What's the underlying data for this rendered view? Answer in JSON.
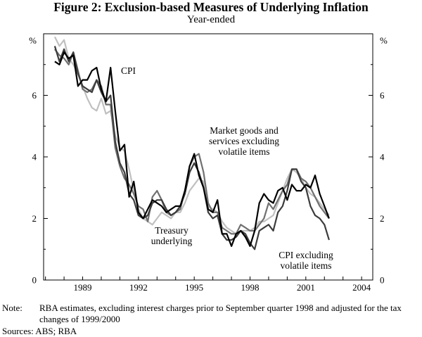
{
  "title": "Figure 2: Exclusion-based Measures of Underlying Inflation",
  "subtitle": "Year-ended",
  "note_label": "Note:",
  "note_text": "RBA estimates, excluding interest charges prior to September quarter 1998 and adjusted for the tax changes of 1999/2000",
  "sources": "Sources: ABS; RBA",
  "chart_data": {
    "type": "line",
    "x_start": 1987.5,
    "x_step": 0.25,
    "xlim": [
      1986.9,
      2004.6
    ],
    "ylim": [
      0,
      8
    ],
    "xticks": [
      1989,
      1992,
      1995,
      1998,
      2001,
      2004
    ],
    "xtick_labels": [
      "1989",
      "1992",
      "1995",
      "1998",
      "2001",
      "2004"
    ],
    "yticks": [
      0,
      2,
      4,
      6
    ],
    "ytick_labels": [
      "0",
      "2",
      "4",
      "6"
    ],
    "y_unit_left": "%",
    "y_unit_right": "%",
    "grid": false,
    "series": [
      {
        "name": "CPI",
        "color": "#000000",
        "values": [
          7.1,
          7.0,
          7.4,
          7.2,
          7.3,
          6.3,
          6.5,
          6.5,
          6.8,
          6.9,
          6.2,
          5.8,
          6.9,
          5.5,
          4.2,
          4.4,
          2.7,
          3.2,
          2.2,
          2.0,
          2.3,
          2.6,
          2.5,
          2.4,
          2.2,
          2.3,
          2.4,
          2.4,
          2.9,
          3.7,
          4.1,
          3.4,
          3.0,
          2.3,
          2.2,
          2.6,
          1.5,
          1.5,
          1.1,
          1.5,
          1.6,
          1.4,
          1.1,
          1.6,
          2.5,
          2.8,
          2.6,
          2.5,
          2.9,
          3.0,
          2.6,
          3.1,
          2.9,
          2.9,
          3.1,
          3.0,
          3.4,
          2.8,
          2.4,
          2.0
        ],
        "label": "CPI"
      },
      {
        "name": "Market goods and services excluding volatile items",
        "color": "#707070",
        "values": [
          7.5,
          7.3,
          7.2,
          7.0,
          7.4,
          6.8,
          6.2,
          6.1,
          6.2,
          6.5,
          6.3,
          5.7,
          5.7,
          4.3,
          3.7,
          3.3,
          3.1,
          2.8,
          2.4,
          2.3,
          1.9,
          2.7,
          2.9,
          2.6,
          2.2,
          2.1,
          2.2,
          2.3,
          2.9,
          3.7,
          4.0,
          4.1,
          3.5,
          2.5,
          2.2,
          2.2,
          1.7,
          1.6,
          1.5,
          1.5,
          1.8,
          1.7,
          1.6,
          1.6,
          1.8,
          2.0,
          2.5,
          2.3,
          2.6,
          2.9,
          3.1,
          3.6,
          3.6,
          3.3,
          3.2,
          3.0,
          2.7,
          2.4,
          2.2,
          2.0
        ],
        "label": "Market goods and services excluding volatile items"
      },
      {
        "name": "CPI excluding volatile items",
        "color": "#3c3c3c",
        "values": [
          7.6,
          7.1,
          7.5,
          7.1,
          7.4,
          6.7,
          6.3,
          6.2,
          6.1,
          6.5,
          6.1,
          5.8,
          6.0,
          4.5,
          3.8,
          3.5,
          2.8,
          2.6,
          2.1,
          2.0,
          2.1,
          2.5,
          2.6,
          2.6,
          2.3,
          2.1,
          2.2,
          2.4,
          2.8,
          3.5,
          3.8,
          3.5,
          3.0,
          2.2,
          2.0,
          2.1,
          1.5,
          1.3,
          1.3,
          1.4,
          1.6,
          1.5,
          1.2,
          1.0,
          1.6,
          1.7,
          1.8,
          1.6,
          2.2,
          2.4,
          2.9,
          3.6,
          3.6,
          3.2,
          3.0,
          2.4,
          2.1,
          2.0,
          1.8,
          1.3
        ],
        "label": "CPI excluding volatile items"
      },
      {
        "name": "Treasury underlying",
        "color": "#c0c0c0",
        "values": [
          7.9,
          7.6,
          7.8,
          7.2,
          7.0,
          6.7,
          6.3,
          5.9,
          5.6,
          5.5,
          5.9,
          5.4,
          5.5,
          4.7,
          4.3,
          4.2,
          3.6,
          2.9,
          2.3,
          2.0,
          1.9,
          1.8,
          2.0,
          2.2,
          2.1,
          2.0,
          2.2,
          2.2,
          2.5,
          2.9,
          3.1,
          3.3,
          3.2,
          2.4,
          2.3,
          2.2,
          1.9,
          1.7,
          1.6,
          1.5,
          1.6,
          1.6,
          1.6,
          1.7,
          1.9,
          1.9,
          2.0,
          2.1,
          2.5,
          2.9,
          3.3,
          3.6,
          3.5,
          3.3,
          3.0,
          2.8,
          2.7,
          2.5,
          2.3,
          2.1
        ],
        "label": "Treasury underlying"
      }
    ],
    "annotations": [
      {
        "id": "cpi",
        "lines": [
          "CPI"
        ]
      },
      {
        "id": "market",
        "lines": [
          "Market goods and",
          "services excluding",
          "volatile items"
        ]
      },
      {
        "id": "treasury",
        "lines": [
          "Treasury",
          "underlying"
        ]
      },
      {
        "id": "cpiex",
        "lines": [
          "CPI excluding",
          "volatile items"
        ]
      }
    ]
  }
}
